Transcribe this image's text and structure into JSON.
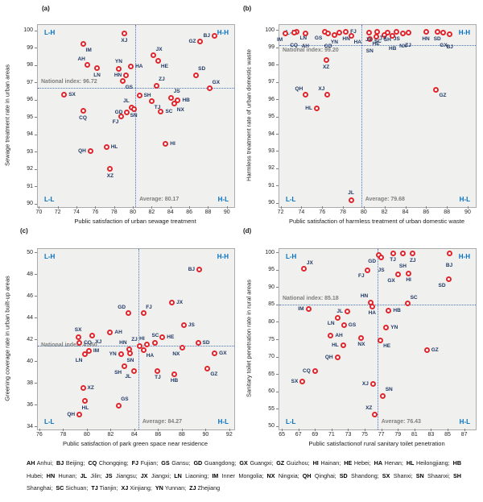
{
  "colors": {
    "marker_stroke": "#e0262c",
    "marker_fill": "#ffffff",
    "point_label": "#1f3864",
    "quadrant_label": "#0070c0",
    "reference_line": "#4472c4",
    "reference_text": "#7f7f7f",
    "plot_background": "#f0f0ef",
    "plot_border": "#ababab"
  },
  "chart_data": [
    {
      "id": "a",
      "type": "scatter",
      "title": "(a)",
      "xlabel": "Public satisfaction of urban sewage treatment",
      "ylabel": "Sewage treatment rate in urban areas",
      "x_range": [
        69.8,
        90.7
      ],
      "y_range": [
        89.85,
        100.35
      ],
      "x_ticks": [
        70,
        72,
        74,
        76,
        78,
        80,
        82,
        84,
        86,
        88,
        90
      ],
      "y_ticks": [
        90,
        91,
        92,
        93,
        94,
        95,
        96,
        97,
        98,
        99,
        100
      ],
      "national_index": {
        "label": "National index:",
        "value": 96.72,
        "text_side": "above"
      },
      "average": {
        "label": "Average:",
        "value": 80.17
      },
      "quadrants": {
        "tl": "L-H",
        "tr": "H-H",
        "bl": "L-L",
        "br": "H-L"
      },
      "points": [
        {
          "l": "XJ",
          "x": 79.0,
          "y": 99.85,
          "p": "b"
        },
        {
          "l": "BJ",
          "x": 88.6,
          "y": 99.7,
          "p": "l"
        },
        {
          "l": "GZ",
          "x": 87.1,
          "y": 99.4,
          "p": "l"
        },
        {
          "l": "IM",
          "x": 74.6,
          "y": 99.25,
          "p": "br"
        },
        {
          "l": "JX",
          "x": 82.1,
          "y": 98.6,
          "p": "tr"
        },
        {
          "l": "HE",
          "x": 82.6,
          "y": 98.3,
          "p": "br"
        },
        {
          "l": "AH",
          "x": 75.1,
          "y": 98.05,
          "p": "tl"
        },
        {
          "l": "HA",
          "x": 79.7,
          "y": 97.95,
          "p": "r"
        },
        {
          "l": "YN",
          "x": 78.4,
          "y": 97.8,
          "p": "t"
        },
        {
          "l": "LN",
          "x": 76.1,
          "y": 97.85,
          "p": "b"
        },
        {
          "l": "HN",
          "x": 79.2,
          "y": 97.45,
          "p": "l"
        },
        {
          "l": "SD",
          "x": 86.6,
          "y": 97.45,
          "p": "tr"
        },
        {
          "l": "GS",
          "x": 78.8,
          "y": 97.1,
          "p": "br"
        },
        {
          "l": "ZJ",
          "x": 82.4,
          "y": 96.85,
          "p": "tr"
        },
        {
          "l": "GX",
          "x": 88.1,
          "y": 96.7,
          "p": "tr"
        },
        {
          "l": "SX",
          "x": 72.6,
          "y": 96.35,
          "p": "r"
        },
        {
          "l": "SH",
          "x": 80.6,
          "y": 96.3,
          "p": "r"
        },
        {
          "l": "JS",
          "x": 84.0,
          "y": 96.15,
          "p": "tr"
        },
        {
          "l": "HB",
          "x": 84.7,
          "y": 96.0,
          "p": "r"
        },
        {
          "l": "TJ",
          "x": 81.9,
          "y": 95.95,
          "p": "br"
        },
        {
          "l": "NX",
          "x": 84.3,
          "y": 95.8,
          "p": "br"
        },
        {
          "l": "JL",
          "x": 79.8,
          "y": 95.6,
          "p": "tl"
        },
        {
          "l": "SN",
          "x": 80.0,
          "y": 95.5,
          "p": "b"
        },
        {
          "l": "GD",
          "x": 79.3,
          "y": 95.3,
          "p": "l"
        },
        {
          "l": "SC",
          "x": 82.9,
          "y": 95.35,
          "p": "r"
        },
        {
          "l": "CQ",
          "x": 74.6,
          "y": 95.4,
          "p": "b"
        },
        {
          "l": "FJ",
          "x": 78.7,
          "y": 95.1,
          "p": "bl"
        },
        {
          "l": "HI",
          "x": 83.4,
          "y": 93.5,
          "p": "r"
        },
        {
          "l": "HL",
          "x": 77.1,
          "y": 93.3,
          "p": "r"
        },
        {
          "l": "QH",
          "x": 75.4,
          "y": 93.1,
          "p": "l"
        },
        {
          "l": "XZ",
          "x": 77.5,
          "y": 92.05,
          "p": "b"
        }
      ]
    },
    {
      "id": "b",
      "type": "scatter",
      "title": "(b)",
      "xlabel": "Public satisfaction of harmless treatment of urban domestic waste",
      "ylabel": "Harmless treatment rate of urban domestic waste",
      "x_range": [
        71.8,
        90.7
      ],
      "y_range": [
        89.8,
        100.35
      ],
      "x_ticks": [
        72,
        74,
        76,
        78,
        80,
        82,
        84,
        86,
        88,
        90
      ],
      "y_ticks": [
        90,
        91,
        92,
        93,
        94,
        95,
        96,
        97,
        98,
        99,
        100
      ],
      "national_index": {
        "label": "National index:",
        "value": 99.2,
        "text_side": "below"
      },
      "average": {
        "label": "Average:",
        "value": 79.68
      },
      "quadrants": {
        "tl": "L-H",
        "tr": "H-H",
        "bl": "L-L",
        "br": "H-L"
      },
      "points": [
        {
          "l": "IM",
          "x": 72.4,
          "y": 99.85,
          "p": "bl"
        },
        {
          "l": "LN",
          "x": 73.5,
          "y": 99.95,
          "p": "br"
        },
        {
          "l": "CQ",
          "x": 73.2,
          "y": 99.9,
          "p": "bb"
        },
        {
          "l": "AH",
          "x": 74.3,
          "y": 99.85,
          "p": "bb"
        },
        {
          "l": "GS",
          "x": 76.2,
          "y": 99.95,
          "p": "bl"
        },
        {
          "l": "GD",
          "x": 76.5,
          "y": 99.85,
          "p": "bb"
        },
        {
          "l": "YN",
          "x": 77.1,
          "y": 99.75,
          "p": "b"
        },
        {
          "l": "HN",
          "x": 77.6,
          "y": 99.9,
          "p": "br"
        },
        {
          "l": "FJ",
          "x": 78.2,
          "y": 99.95,
          "p": "r"
        },
        {
          "l": "HA",
          "x": 78.7,
          "y": 99.7,
          "p": "br"
        },
        {
          "l": "JX",
          "x": 80.4,
          "y": 99.9,
          "p": "b"
        },
        {
          "l": "TJ",
          "x": 81.2,
          "y": 99.95,
          "p": "br"
        },
        {
          "l": "HE",
          "x": 81.1,
          "y": 99.65,
          "p": "b"
        },
        {
          "l": "SN",
          "x": 80.5,
          "y": 99.55,
          "p": "bb"
        },
        {
          "l": "SH",
          "x": 82.2,
          "y": 99.9,
          "p": "b"
        },
        {
          "l": "SC",
          "x": 81.9,
          "y": 99.75,
          "p": "bl"
        },
        {
          "l": "HB",
          "x": 82.7,
          "y": 99.7,
          "p": "bb"
        },
        {
          "l": "JS",
          "x": 83.1,
          "y": 99.95,
          "p": "b"
        },
        {
          "l": "NX",
          "x": 83.7,
          "y": 99.85,
          "p": "bb"
        },
        {
          "l": "ZJ",
          "x": 84.2,
          "y": 99.9,
          "p": "bb"
        },
        {
          "l": "HN",
          "x": 85.9,
          "y": 99.95,
          "p": "b"
        },
        {
          "l": "SD",
          "x": 87.0,
          "y": 99.95,
          "p": "b"
        },
        {
          "l": "GX",
          "x": 87.6,
          "y": 99.9,
          "p": "bb"
        },
        {
          "l": "BJ",
          "x": 88.2,
          "y": 99.8,
          "p": "bb"
        },
        {
          "l": "XZ",
          "x": 76.3,
          "y": 98.3,
          "p": "b"
        },
        {
          "l": "QH",
          "x": 74.3,
          "y": 96.3,
          "p": "tl"
        },
        {
          "l": "XJ",
          "x": 76.4,
          "y": 96.3,
          "p": "tl"
        },
        {
          "l": "HL",
          "x": 75.4,
          "y": 95.5,
          "p": "l"
        },
        {
          "l": "GZ",
          "x": 86.9,
          "y": 96.6,
          "p": "br"
        },
        {
          "l": "JL",
          "x": 78.7,
          "y": 90.2,
          "p": "t"
        }
      ]
    },
    {
      "id": "c",
      "type": "scatter",
      "title": "(c)",
      "xlabel": "Public satisfaction of park green space near residence",
      "ylabel": "Greening coverage rate in urban built-up areas",
      "x_range": [
        75.8,
        92.35
      ],
      "y_range": [
        33.8,
        50.4
      ],
      "x_ticks": [
        76,
        78,
        80,
        82,
        84,
        86,
        88,
        90,
        92
      ],
      "y_ticks": [
        34,
        36,
        38,
        40,
        42,
        44,
        46,
        48,
        50
      ],
      "national_index": {
        "label": "National index:",
        "value": 41.5,
        "text_side": "on"
      },
      "average": {
        "label": "Average:",
        "value": 84.27
      },
      "quadrants": {
        "tl": "L-H",
        "tr": "H-H",
        "bl": "L-L",
        "br": "H-L"
      },
      "points": [
        {
          "l": "BJ",
          "x": 89.4,
          "y": 48.5,
          "p": "l"
        },
        {
          "l": "JX",
          "x": 87.1,
          "y": 45.5,
          "p": "r"
        },
        {
          "l": "GD",
          "x": 83.4,
          "y": 44.5,
          "p": "tl"
        },
        {
          "l": "FJ",
          "x": 84.7,
          "y": 44.5,
          "p": "tr"
        },
        {
          "l": "JS",
          "x": 88.1,
          "y": 43.4,
          "p": "r"
        },
        {
          "l": "AH",
          "x": 81.9,
          "y": 42.7,
          "p": "r"
        },
        {
          "l": "SX",
          "x": 79.2,
          "y": 42.3,
          "p": "t"
        },
        {
          "l": "XJ",
          "x": 80.4,
          "y": 42.4,
          "p": "br"
        },
        {
          "l": "CQ",
          "x": 79.3,
          "y": 41.8,
          "p": "r"
        },
        {
          "l": "HI",
          "x": 85.0,
          "y": 41.6,
          "p": "tl"
        },
        {
          "l": "SC",
          "x": 85.7,
          "y": 41.8,
          "p": "t"
        },
        {
          "l": "HE",
          "x": 86.3,
          "y": 42.3,
          "p": "r"
        },
        {
          "l": "SD",
          "x": 89.3,
          "y": 41.8,
          "p": "r"
        },
        {
          "l": "ZJ",
          "x": 84.4,
          "y": 41.5,
          "p": "tl"
        },
        {
          "l": "HN",
          "x": 83.5,
          "y": 41.2,
          "p": "tl"
        },
        {
          "l": "IM",
          "x": 80.1,
          "y": 41.0,
          "p": "r"
        },
        {
          "l": "LN",
          "x": 79.8,
          "y": 40.7,
          "p": "bl"
        },
        {
          "l": "YN",
          "x": 82.8,
          "y": 40.7,
          "p": "l"
        },
        {
          "l": "SN",
          "x": 83.6,
          "y": 40.8,
          "p": "b"
        },
        {
          "l": "HA",
          "x": 84.7,
          "y": 41.1,
          "p": "br"
        },
        {
          "l": "NX",
          "x": 88.0,
          "y": 41.3,
          "p": "bl"
        },
        {
          "l": "GX",
          "x": 90.7,
          "y": 40.8,
          "p": "r"
        },
        {
          "l": "SH",
          "x": 83.1,
          "y": 39.6,
          "p": "bl"
        },
        {
          "l": "JL",
          "x": 83.9,
          "y": 39.2,
          "p": "bl"
        },
        {
          "l": "TJ",
          "x": 85.9,
          "y": 39.2,
          "p": "b"
        },
        {
          "l": "HB",
          "x": 87.3,
          "y": 38.9,
          "p": "b"
        },
        {
          "l": "GZ",
          "x": 90.1,
          "y": 39.4,
          "p": "br"
        },
        {
          "l": "XZ",
          "x": 79.6,
          "y": 37.6,
          "p": "r"
        },
        {
          "l": "HL",
          "x": 79.8,
          "y": 36.4,
          "p": "b"
        },
        {
          "l": "GS",
          "x": 82.6,
          "y": 36.0,
          "p": "tr"
        },
        {
          "l": "QH",
          "x": 79.3,
          "y": 35.2,
          "p": "l"
        }
      ]
    },
    {
      "id": "d",
      "type": "scatter",
      "title": "(d)",
      "xlabel": "Public satisfactionof rural sanitary toilet penetration",
      "ylabel": "Sanitary toilet penetration rate in rural areas",
      "x_range": [
        64.6,
        88.3
      ],
      "y_range": [
        49.3,
        101.2
      ],
      "x_ticks": [
        65,
        67,
        69,
        71,
        73,
        75,
        77,
        79,
        81,
        83,
        85,
        87
      ],
      "y_ticks": [
        50,
        55,
        60,
        65,
        70,
        75,
        80,
        85,
        90,
        95,
        100
      ],
      "national_index": {
        "label": "National index:",
        "value": 85.18,
        "text_side": "above"
      },
      "average": {
        "label": "Average:",
        "value": 76.43
      },
      "quadrants": {
        "tl": "L-H",
        "tr": "H-H",
        "bl": "L-L",
        "br": "H-L"
      },
      "points": [
        {
          "l": "JX",
          "x": 67.6,
          "y": 95.5,
          "p": "tr"
        },
        {
          "l": "GD",
          "x": 76.6,
          "y": 99.4,
          "p": "bl"
        },
        {
          "l": "JS",
          "x": 76.9,
          "y": 98.7,
          "p": "bb"
        },
        {
          "l": "TJ",
          "x": 78.3,
          "y": 100.0,
          "p": "b"
        },
        {
          "l": "SH",
          "x": 79.5,
          "y": 99.9,
          "p": "bb"
        },
        {
          "l": "ZJ",
          "x": 80.7,
          "y": 99.9,
          "p": "b"
        },
        {
          "l": "BJ",
          "x": 85.1,
          "y": 100.0,
          "p": "bb"
        },
        {
          "l": "FJ",
          "x": 75.2,
          "y": 95.1,
          "p": "bl"
        },
        {
          "l": "GX",
          "x": 78.9,
          "y": 93.8,
          "p": "bl"
        },
        {
          "l": "HI",
          "x": 80.2,
          "y": 94.2,
          "p": "b"
        },
        {
          "l": "SD",
          "x": 85.0,
          "y": 92.4,
          "p": "bl"
        },
        {
          "l": "SC",
          "x": 80.1,
          "y": 85.5,
          "p": "tr"
        },
        {
          "l": "HN",
          "x": 75.6,
          "y": 85.9,
          "p": "tl"
        },
        {
          "l": "HA",
          "x": 75.8,
          "y": 84.7,
          "p": "b"
        },
        {
          "l": "IM",
          "x": 68.1,
          "y": 83.9,
          "p": "l"
        },
        {
          "l": "JL",
          "x": 72.8,
          "y": 83.3,
          "p": "l"
        },
        {
          "l": "HB",
          "x": 77.8,
          "y": 83.4,
          "p": "r"
        },
        {
          "l": "LN",
          "x": 71.6,
          "y": 81.4,
          "p": "bl"
        },
        {
          "l": "GS",
          "x": 72.4,
          "y": 79.4,
          "p": "r"
        },
        {
          "l": "YN",
          "x": 77.5,
          "y": 78.6,
          "p": "r"
        },
        {
          "l": "AH",
          "x": 70.8,
          "y": 76.2,
          "p": "r"
        },
        {
          "l": "NX",
          "x": 74.5,
          "y": 75.7,
          "p": "b"
        },
        {
          "l": "HE",
          "x": 76.8,
          "y": 75.0,
          "p": "br"
        },
        {
          "l": "HL",
          "x": 72.3,
          "y": 73.5,
          "p": "l"
        },
        {
          "l": "GZ",
          "x": 82.4,
          "y": 72.1,
          "p": "r"
        },
        {
          "l": "QH",
          "x": 71.6,
          "y": 70.1,
          "p": "l"
        },
        {
          "l": "CQ",
          "x": 68.9,
          "y": 66.2,
          "p": "l"
        },
        {
          "l": "SX",
          "x": 67.4,
          "y": 63.0,
          "p": "l"
        },
        {
          "l": "XJ",
          "x": 75.9,
          "y": 62.3,
          "p": "l"
        },
        {
          "l": "SN",
          "x": 77.1,
          "y": 59.0,
          "p": "tr"
        },
        {
          "l": "XZ",
          "x": 76.1,
          "y": 53.7,
          "p": "tl"
        }
      ]
    }
  ],
  "legend": [
    {
      "code": "AH",
      "name": "Anhui"
    },
    {
      "code": "BJ",
      "name": "Beijing"
    },
    {
      "code": "CQ",
      "name": "Chongqing"
    },
    {
      "code": "FJ",
      "name": "Fujian"
    },
    {
      "code": "GS",
      "name": "Gansu"
    },
    {
      "code": "GD",
      "name": "Guangdong"
    },
    {
      "code": "GX",
      "name": "Guangxi"
    },
    {
      "code": "GZ",
      "name": "Guizhou"
    },
    {
      "code": "HI",
      "name": "Hainan"
    },
    {
      "code": "HE",
      "name": "Hebei"
    },
    {
      "code": "HA",
      "name": "Henan"
    },
    {
      "code": "HL",
      "name": "Heilongjiang"
    },
    {
      "code": "HB",
      "name": "Hubei"
    },
    {
      "code": "HN",
      "name": "Hunan"
    },
    {
      "code": "JL",
      "name": "Jilin"
    },
    {
      "code": "JS",
      "name": "Jiangsu"
    },
    {
      "code": "JX",
      "name": "Jiangxi"
    },
    {
      "code": "LN",
      "name": "Liaoning"
    },
    {
      "code": "IM",
      "name": "Inner Mongolia"
    },
    {
      "code": "NX",
      "name": "Ningxia"
    },
    {
      "code": "QH",
      "name": "Qinghai"
    },
    {
      "code": "SD",
      "name": "Shandong"
    },
    {
      "code": "SX",
      "name": "Shanxi"
    },
    {
      "code": "SN",
      "name": "Shaanxi"
    },
    {
      "code": "SH",
      "name": "Shanghai"
    },
    {
      "code": "SC",
      "name": "Sichuan"
    },
    {
      "code": "TJ",
      "name": "Tianjin"
    },
    {
      "code": "XJ",
      "name": "Xinjiang"
    },
    {
      "code": "YN",
      "name": "Yunnan"
    },
    {
      "code": "ZJ",
      "name": "Zhejiang"
    }
  ]
}
